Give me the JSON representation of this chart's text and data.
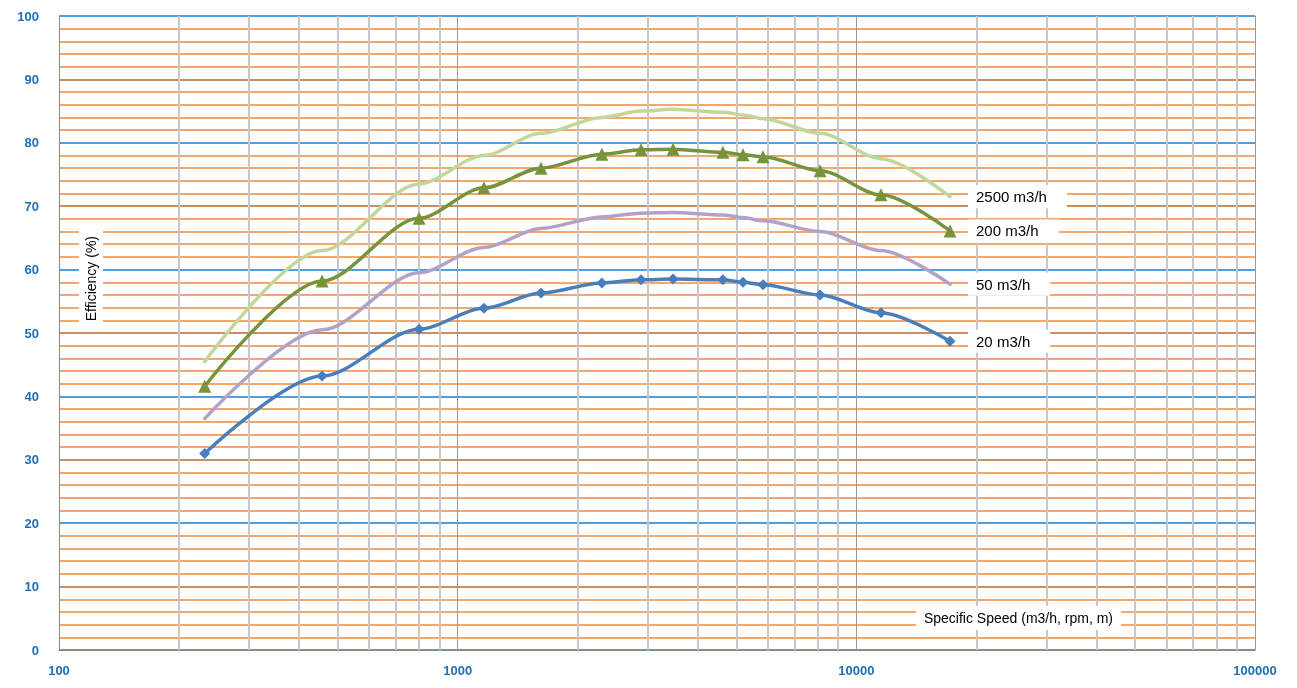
{
  "chart_data": {
    "type": "line",
    "xlabel": "Specific Speed (m3/h, rpm, m)",
    "ylabel": "Efficiency (%)",
    "log": "x",
    "xlim": [
      100,
      100000
    ],
    "xticks": [
      100,
      1000,
      10000,
      100000
    ],
    "ylim": [
      0,
      100
    ],
    "yticks": [
      0,
      10,
      20,
      30,
      40,
      50,
      60,
      70,
      80,
      90,
      100
    ],
    "grid": true,
    "legend": false,
    "x": [
      232,
      457,
      800,
      1164,
      1618,
      2300,
      2884,
      3470,
      4626,
      5196,
      5834,
      8110,
      11530,
      17180
    ],
    "series": [
      {
        "name": "2500 m3/h",
        "color": "#c3d69b",
        "marker": "none",
        "values": [
          45.5,
          63,
          73.5,
          78,
          81.5,
          84,
          85,
          85.3,
          84.8,
          84.4,
          83.8,
          81.5,
          77.5,
          71.5
        ]
      },
      {
        "name": "200 m3/h",
        "color": "#77933c",
        "marker": "triangle",
        "values": [
          41.6,
          58.2,
          68.1,
          72.9,
          76,
          78.2,
          78.9,
          79,
          78.5,
          78.1,
          77.8,
          75.6,
          71.8,
          66.1
        ]
      },
      {
        "name": "50 m3/h",
        "color": "#b3a2c7",
        "marker": "none",
        "values": [
          36.5,
          50.5,
          59.5,
          63.5,
          66.5,
          68.3,
          68.9,
          69,
          68.6,
          68.2,
          67.7,
          66,
          63,
          57.7
        ]
      },
      {
        "name": "20 m3/h",
        "color": "#4a7ebb",
        "marker": "diamond",
        "values": [
          31,
          43.2,
          50.6,
          53.9,
          56.3,
          57.9,
          58.4,
          58.5,
          58.4,
          58,
          57.6,
          56,
          53.2,
          48.7
        ]
      }
    ]
  }
}
